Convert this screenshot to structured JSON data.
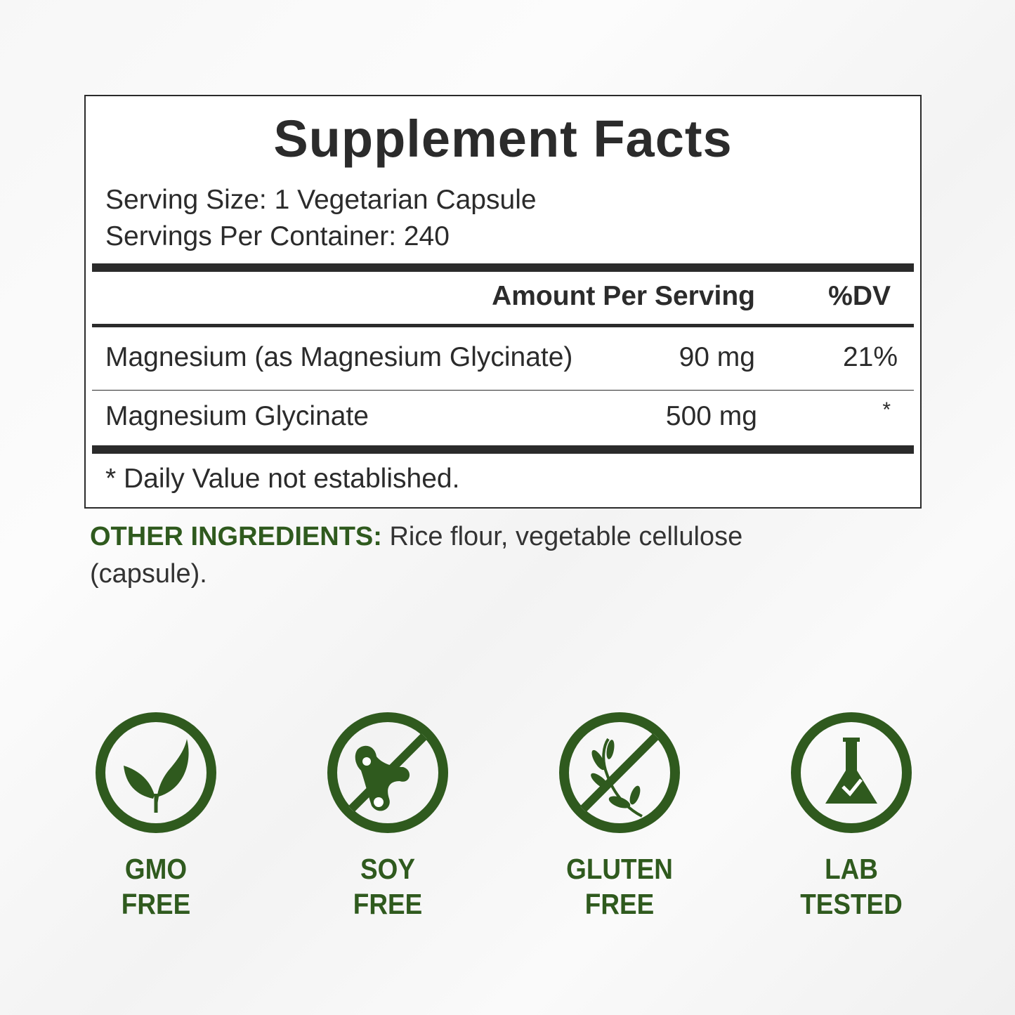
{
  "facts": {
    "title": "Supplement Facts",
    "serving_size": "Serving Size: 1 Vegetarian Capsule",
    "servings_per_container": "Servings Per Container: 240",
    "header_amount": "Amount Per Serving",
    "header_dv": "%DV",
    "rows": [
      {
        "name": "Magnesium (as Magnesium Glycinate)",
        "amount": "90 mg",
        "dv": "21%"
      },
      {
        "name": "Magnesium Glycinate",
        "amount": "500 mg",
        "dv": "*"
      }
    ],
    "footnote": "* Daily Value not established."
  },
  "other_ingredients": {
    "label": "OTHER INGREDIENTS:",
    "text": " Rice flour, vegetable cellulose (capsule)."
  },
  "badges": [
    {
      "icon": "leaf-icon",
      "line1": "GMO",
      "line2": "FREE"
    },
    {
      "icon": "no-soy-icon",
      "line1": "SOY",
      "line2": "FREE"
    },
    {
      "icon": "no-gluten-icon",
      "line1": "GLUTEN",
      "line2": "FREE"
    },
    {
      "icon": "flask-check-icon",
      "line1": "LAB",
      "line2": "TESTED"
    }
  ],
  "colors": {
    "accent_green": "#2f5a1e",
    "text": "#2b2b2b"
  }
}
